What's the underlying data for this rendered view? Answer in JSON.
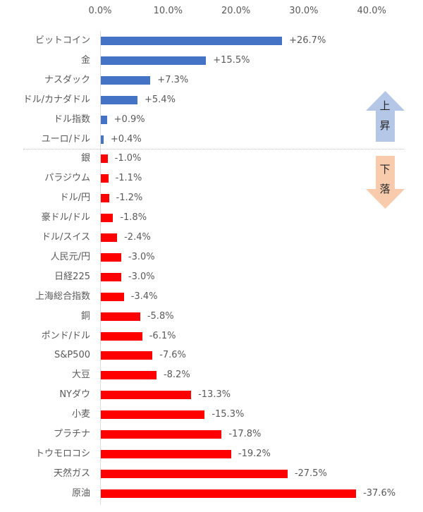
{
  "chart_data": {
    "type": "bar",
    "orientation": "horizontal",
    "title": "",
    "xlabel": "",
    "ylabel": "",
    "xlim": [
      0,
      40
    ],
    "x_ticks": [
      "0.0%",
      "10.0%",
      "20.0%",
      "30.0%",
      "40.0%"
    ],
    "note": "Bars plot magnitude of change; rising items in blue, falling items in red",
    "categories": [
      "ビットコイン",
      "金",
      "ナスダック",
      "ドル/カナダドル",
      "ドル指数",
      "ユーロ/ドル",
      "銀",
      "パラジウム",
      "ドル/円",
      "豪ドル/ドル",
      "ドル/スイス",
      "人民元/円",
      "日経225",
      "上海総合指数",
      "銅",
      "ポンド/ドル",
      "S&P500",
      "大豆",
      "NYダウ",
      "小麦",
      "プラチナ",
      "トウモロコシ",
      "天然ガス",
      "原油"
    ],
    "values": [
      26.7,
      15.5,
      7.3,
      5.4,
      0.9,
      0.4,
      -1.0,
      -1.1,
      -1.2,
      -1.8,
      -2.4,
      -3.0,
      -3.0,
      -3.4,
      -5.8,
      -6.1,
      -7.6,
      -8.2,
      -13.3,
      -15.3,
      -17.8,
      -19.2,
      -27.5,
      -37.6
    ],
    "labels": [
      "+26.7%",
      "+15.5%",
      "+7.3%",
      "+5.4%",
      "+0.9%",
      "+0.4%",
      "-1.0%",
      "-1.1%",
      "-1.2%",
      "-1.8%",
      "-2.4%",
      "-3.0%",
      "-3.0%",
      "-3.4%",
      "-5.8%",
      "-6.1%",
      "-7.6%",
      "-8.2%",
      "-13.3%",
      "-15.3%",
      "-17.8%",
      "-19.2%",
      "-27.5%",
      "-37.6%"
    ],
    "series_colors": {
      "rise": "#4472c4",
      "fall": "#ff0000"
    },
    "annotations": [
      {
        "text": "上昇",
        "type": "up-arrow",
        "color": "#b4c7e7"
      },
      {
        "text": "下落",
        "type": "down-arrow",
        "color": "#f8cbad"
      }
    ],
    "grid": false,
    "legend": null
  },
  "arrows": {
    "up_chars": [
      "上",
      "昇"
    ],
    "down_chars": [
      "下",
      "落"
    ]
  }
}
